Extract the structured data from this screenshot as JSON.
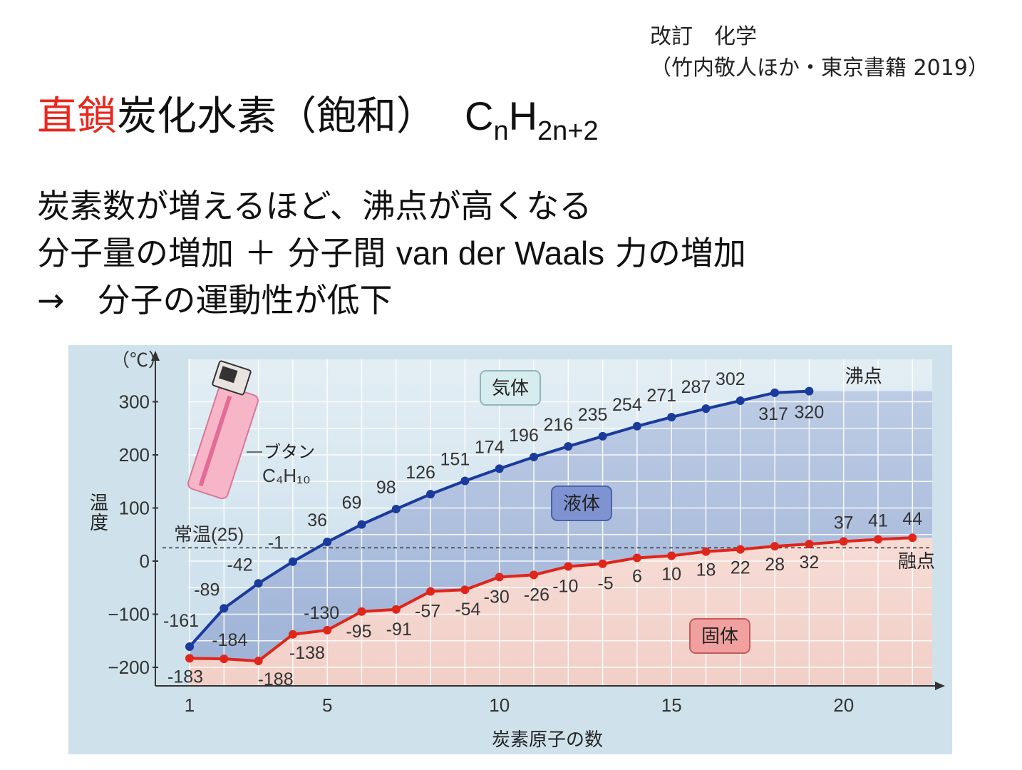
{
  "citation": {
    "line1": "改訂　化学",
    "line2": "（竹内敬人ほか・東京書籍 2019）"
  },
  "title": {
    "accent": "直鎖",
    "main": "炭化水素（飽和）",
    "formula_base1": "C",
    "formula_sub1": "n",
    "formula_base2": "H",
    "formula_sub2": "2n+2"
  },
  "body": {
    "line1": "炭素数が増えるほど、沸点が高くなる",
    "line2a": "分子量の増加 ＋ 分子間",
    "line2b": "van der Waals",
    "line2c": "力の増加",
    "line3": "→　分子の運動性が低下"
  },
  "colors": {
    "boiling": "#1a3a9c",
    "melting": "#e0251b",
    "gas_bg": "#cfe3ee",
    "liquid_bg": "#9fb3d6",
    "solid_bg": "#f5d5cf"
  },
  "chart_data": {
    "type": "line",
    "ylabel": "温度",
    "yunit": "（℃）",
    "xlabel": "炭素原子の数",
    "xlim": [
      1,
      22
    ],
    "ylim": [
      -200,
      300
    ],
    "xticks": [
      1,
      5,
      10,
      15,
      20
    ],
    "yticks": [
      -200,
      -100,
      0,
      100,
      200,
      300
    ],
    "ytick_labels": [
      "−200",
      "−100",
      "0",
      "100",
      "200",
      "300"
    ],
    "grid": true,
    "reference_line": {
      "label": "常温(25)",
      "y": 25
    },
    "region_labels": [
      "気体",
      "液体",
      "固体"
    ],
    "annotation": {
      "label": "ブタン",
      "formula": "C₄H₁₀"
    },
    "series": [
      {
        "name": "沸点",
        "x": [
          1,
          2,
          3,
          4,
          5,
          6,
          7,
          8,
          9,
          10,
          11,
          12,
          13,
          14,
          15,
          16,
          17,
          18,
          19
        ],
        "values": [
          -161,
          -89,
          -42,
          -1,
          36,
          69,
          98,
          126,
          151,
          174,
          196,
          216,
          235,
          254,
          271,
          287,
          302,
          317,
          320
        ],
        "labels": [
          "-161",
          "-89",
          "-42",
          "-1",
          "36",
          "69",
          "98",
          "126",
          "151",
          "174",
          "196",
          "216",
          "235",
          "254",
          "271",
          "287",
          "302",
          "317",
          "320"
        ]
      },
      {
        "name": "融点",
        "x": [
          1,
          2,
          3,
          4,
          5,
          6,
          7,
          8,
          9,
          10,
          11,
          12,
          13,
          14,
          15,
          16,
          17,
          18,
          19,
          20,
          21,
          22
        ],
        "values": [
          -183,
          -184,
          -188,
          -138,
          -130,
          -95,
          -91,
          -57,
          -54,
          -30,
          -26,
          -10,
          -5,
          6,
          10,
          18,
          22,
          28,
          32,
          37,
          41,
          44
        ],
        "labels": [
          "-183",
          "-184",
          "-188",
          "-138",
          "-130",
          "-95",
          "-91",
          "-57",
          "-54",
          "-30",
          "-26",
          "-10",
          "-5",
          "6",
          "10",
          "18",
          "22",
          "28",
          "32",
          "37",
          "41",
          "44"
        ]
      }
    ]
  }
}
